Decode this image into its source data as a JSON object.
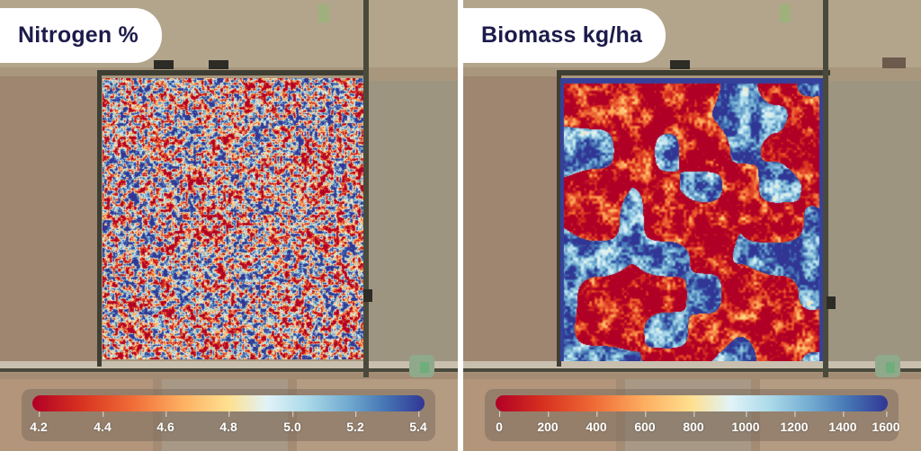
{
  "panels": [
    {
      "title": "Nitrogen %",
      "legend": {
        "ticks": [
          "4.2",
          "4.4",
          "4.6",
          "4.8",
          "5.0",
          "5.2",
          "5.4"
        ]
      }
    },
    {
      "title": "Biomass kg/ha",
      "legend": {
        "ticks": [
          "0",
          "200",
          "400",
          "600",
          "800",
          "1000",
          "1200",
          "1400",
          "1600"
        ]
      }
    }
  ],
  "colormap": [
    "#b10026",
    "#d7301f",
    "#ef6a36",
    "#fdae61",
    "#fee090",
    "#e0f3f8",
    "#abd9e9",
    "#74add1",
    "#4575b4",
    "#313695"
  ]
}
